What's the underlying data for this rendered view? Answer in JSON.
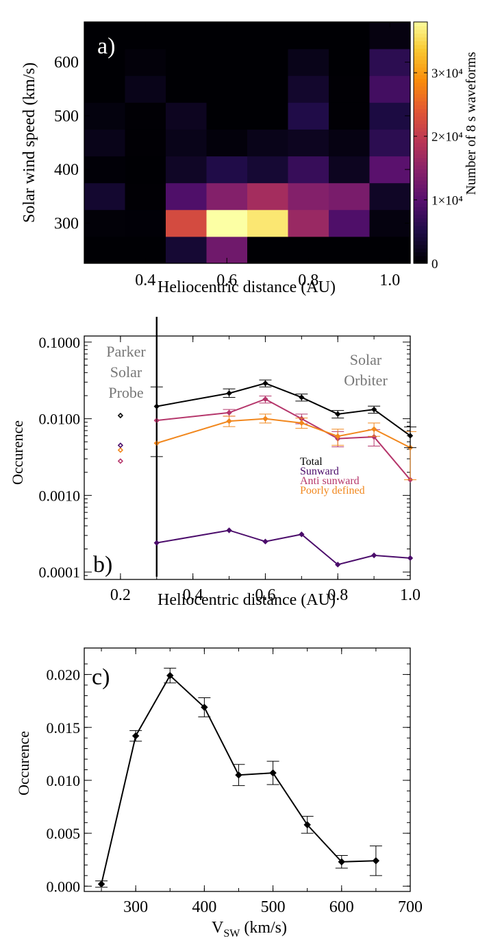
{
  "figure": {
    "panel_a_label": "a)",
    "panel_b_label": "b)",
    "panel_c_label": "c)"
  },
  "colors": {
    "total": "#000000",
    "sunward": "#4b0c6b",
    "anti_sunward": "#b5366b",
    "poorly_defined": "#f1871d",
    "probe_text": "#777777"
  },
  "chart_data": [
    {
      "type": "heatmap",
      "panel": "a)",
      "xlabel": "Heliocentric distance (AU)",
      "ylabel": "Solar wind speed (km/s)",
      "colorbar_label": "Number of 8 s waveforms",
      "colorbar_ticks": [
        "0",
        "1×10⁴",
        "2×10⁴",
        "3×10⁴"
      ],
      "colorbar_tick_values": [
        0,
        10000,
        20000,
        30000
      ],
      "colorbar_range": [
        0,
        38000
      ],
      "x_ticks": [
        "0.4",
        "0.6",
        "0.8",
        "1.0"
      ],
      "x_tick_values": [
        0.4,
        0.6,
        0.8,
        1.0
      ],
      "y_ticks": [
        "300",
        "400",
        "500",
        "600"
      ],
      "y_tick_values": [
        300,
        400,
        500,
        600
      ],
      "xlim": [
        0.25,
        1.05
      ],
      "ylim": [
        225,
        675
      ],
      "x_bins": [
        0.3,
        0.4,
        0.5,
        0.6,
        0.7,
        0.8,
        0.9,
        1.0
      ],
      "y_bins": [
        250,
        300,
        350,
        400,
        450,
        500,
        550,
        600,
        650
      ],
      "values": [
        [
          0,
          0,
          3500,
          12000,
          0,
          0,
          0,
          0
        ],
        [
          300,
          200,
          22000,
          38000,
          36000,
          16000,
          9000,
          800
        ],
        [
          3200,
          100,
          9000,
          14000,
          17000,
          14000,
          13000,
          2500
        ],
        [
          200,
          0,
          2500,
          5000,
          3500,
          7000,
          2000,
          10000
        ],
        [
          1500,
          100,
          1500,
          500,
          1500,
          2000,
          1000,
          6000
        ],
        [
          700,
          100,
          2000,
          0,
          0,
          5000,
          100,
          4500
        ],
        [
          0,
          1500,
          0,
          0,
          0,
          3000,
          100,
          8000
        ],
        [
          0,
          400,
          0,
          0,
          0,
          1500,
          0,
          6000
        ],
        [
          0,
          0,
          0,
          0,
          0,
          0,
          0,
          900
        ]
      ]
    },
    {
      "type": "line",
      "panel": "b)",
      "xlabel": "Heliocentric distance (AU)",
      "ylabel": "Occurence",
      "yscale": "log",
      "ylim": [
        8e-05,
        0.12
      ],
      "xlim": [
        0.1,
        1.0
      ],
      "x_ticks": [
        "0.2",
        "0.4",
        "0.6",
        "0.8",
        "1.0"
      ],
      "x_tick_values": [
        0.2,
        0.4,
        0.6,
        0.8,
        1.0
      ],
      "y_ticks": [
        "0.0001",
        "0.0010",
        "0.0100",
        "0.1000"
      ],
      "y_tick_values": [
        0.0001,
        0.001,
        0.01,
        0.1
      ],
      "x": [
        0.3,
        0.5,
        0.6,
        0.7,
        0.8,
        0.9,
        1.0
      ],
      "series": [
        {
          "name": "Total",
          "color": "#000000",
          "values": [
            0.0145,
            0.0215,
            0.029,
            0.019,
            0.0115,
            0.0132,
            0.006
          ],
          "err_low": [
            0.0032,
            0.019,
            0.026,
            0.017,
            0.0102,
            0.0118,
            0.0042
          ],
          "err_high": [
            0.026,
            0.0245,
            0.032,
            0.021,
            0.0128,
            0.0146,
            0.0078
          ],
          "psp": 0.011
        },
        {
          "name": "Sunward",
          "color": "#4b0c6b",
          "values": [
            0.00024,
            0.00035,
            0.00025,
            0.00031,
            0.000125,
            0.000165,
            0.000152
          ],
          "psp": 0.0045
        },
        {
          "name": "Anti sunward",
          "color": "#b5366b",
          "values": [
            0.0095,
            0.012,
            0.018,
            0.01,
            0.0055,
            0.0058,
            0.0016
          ],
          "err_low": [
            0.0095,
            0.0108,
            0.016,
            0.0086,
            0.0043,
            0.0044,
            0.0016
          ],
          "err_high": [
            0.0095,
            0.0132,
            0.0198,
            0.0115,
            0.0068,
            0.0072,
            0.0016
          ],
          "psp": 0.0028
        },
        {
          "name": "Poorly defined",
          "color": "#f1871d",
          "values": [
            0.0048,
            0.0093,
            0.01,
            0.0088,
            0.0059,
            0.0073,
            0.0042
          ],
          "err_low": [
            0.0048,
            0.0079,
            0.0088,
            0.0075,
            0.0045,
            0.0059,
            0.0016
          ],
          "err_high": [
            0.0048,
            0.0108,
            0.0115,
            0.0102,
            0.0073,
            0.0088,
            0.0068
          ],
          "psp": 0.0039
        }
      ],
      "psp_x": 0.2,
      "divider_x": 0.3,
      "annotations": {
        "left": [
          "Parker",
          "Solar",
          "Probe"
        ],
        "right": [
          "Solar",
          "Orbiter"
        ]
      },
      "legend": [
        "Total",
        "Sunward",
        "Anti sunward",
        "Poorly defined"
      ]
    },
    {
      "type": "line",
      "panel": "c)",
      "xlabel": "V",
      "xlabel_sub": "SW",
      "xlabel_unit": " (km/s)",
      "ylabel": "Occurence",
      "xlim": [
        225,
        700
      ],
      "ylim": [
        -0.0005,
        0.0225
      ],
      "x_ticks": [
        "300",
        "400",
        "500",
        "600",
        "700"
      ],
      "x_tick_values": [
        300,
        400,
        500,
        600,
        700
      ],
      "y_ticks": [
        "0.000",
        "0.005",
        "0.010",
        "0.015",
        "0.020"
      ],
      "y_tick_values": [
        0,
        0.005,
        0.01,
        0.015,
        0.02
      ],
      "x": [
        250,
        300,
        350,
        400,
        450,
        500,
        550,
        600,
        650
      ],
      "values": [
        0.0002,
        0.0142,
        0.0199,
        0.0169,
        0.0105,
        0.0107,
        0.0058,
        0.0023,
        0.0024
      ],
      "err": [
        0.0003,
        0.0005,
        0.0007,
        0.0009,
        0.001,
        0.0011,
        0.0008,
        0.0006,
        0.0014
      ]
    }
  ]
}
